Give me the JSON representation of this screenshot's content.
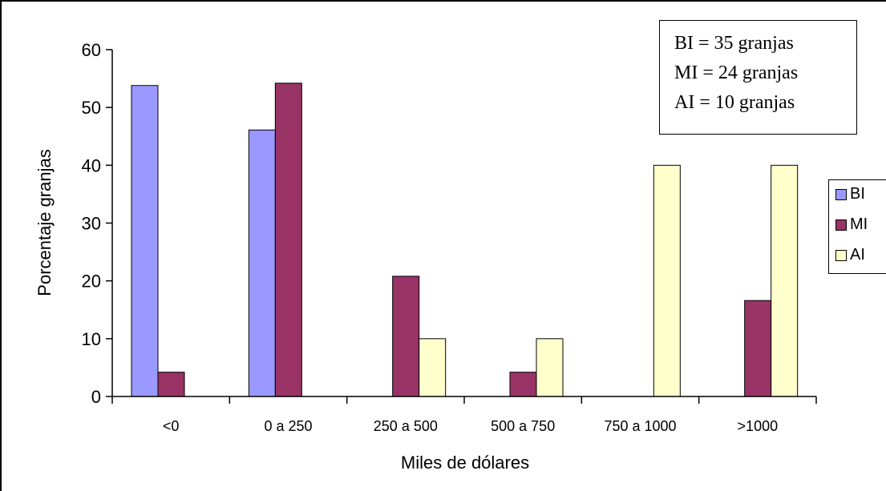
{
  "chart_data": {
    "type": "bar",
    "categories": [
      "<0",
      "0 a 250",
      "250 a 500",
      "500 a 750",
      "750 a 1000",
      ">1000"
    ],
    "series": [
      {
        "name": "BI",
        "color": "#9999ff",
        "values": [
          53.8,
          46.1,
          0,
          0,
          0,
          0
        ]
      },
      {
        "name": "MI",
        "color": "#993366",
        "values": [
          4.2,
          54.2,
          20.8,
          4.2,
          0,
          16.6
        ]
      },
      {
        "name": "AI",
        "color": "#ffffcc",
        "values": [
          0,
          0,
          10,
          10,
          40,
          40
        ]
      }
    ],
    "xlabel": "Miles de dólares",
    "ylabel": "Porcentaje granjas",
    "ylim": [
      0,
      60
    ],
    "yticks": [
      "0",
      "10",
      "20",
      "30",
      "40",
      "50",
      "60"
    ],
    "grid": false,
    "legend": "right"
  },
  "note": {
    "lines": [
      "BI = 35 granjas",
      "MI = 24 granjas",
      "AI = 10 granjas"
    ]
  }
}
